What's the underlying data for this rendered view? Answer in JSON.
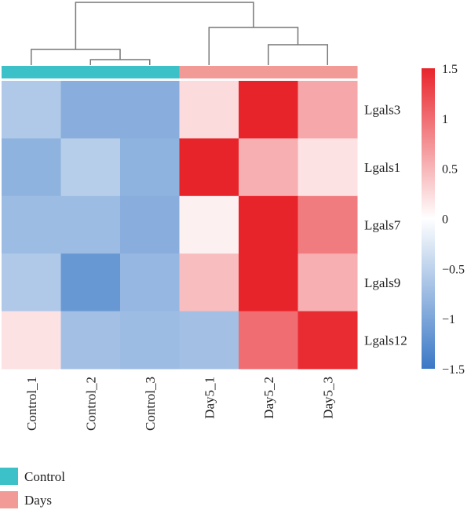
{
  "chart_data": {
    "type": "heatmap",
    "rows": [
      "Lgals3",
      "Lgals1",
      "Lgals7",
      "Lgals9",
      "Lgals12"
    ],
    "columns": [
      "Control_1",
      "Control_2",
      "Control_3",
      "Day5_1",
      "Day5_2",
      "Day5_3"
    ],
    "column_groups": [
      "Control",
      "Control",
      "Control",
      "Days",
      "Days",
      "Days"
    ],
    "values": [
      [
        -0.6,
        -0.9,
        -0.9,
        0.25,
        1.5,
        0.6
      ],
      [
        -0.85,
        -0.55,
        -0.85,
        1.5,
        0.55,
        0.2
      ],
      [
        -0.75,
        -0.75,
        -0.9,
        0.1,
        1.5,
        0.9
      ],
      [
        -0.6,
        -1.15,
        -0.8,
        0.45,
        1.5,
        0.55
      ],
      [
        0.2,
        -0.7,
        -0.75,
        -0.7,
        1.0,
        1.45
      ]
    ],
    "color_scale": {
      "min": -1.5,
      "max": 1.5,
      "ticks": [
        1.5,
        1,
        0.5,
        0,
        -0.5,
        -1,
        -1.5
      ],
      "tick_labels": [
        "1.5",
        "1",
        "0.5",
        "0",
        "−0.5",
        "−1",
        "−1.5"
      ],
      "low_color": "#3a78c6",
      "mid_color": "#ffffff",
      "high_color": "#e8242b"
    },
    "legend": {
      "placement": "bottom-left",
      "items": [
        {
          "label": "Control",
          "color": "#3cc1c9"
        },
        {
          "label": "Days",
          "color": "#f29a96"
        }
      ]
    },
    "column_dendrogram": true
  }
}
